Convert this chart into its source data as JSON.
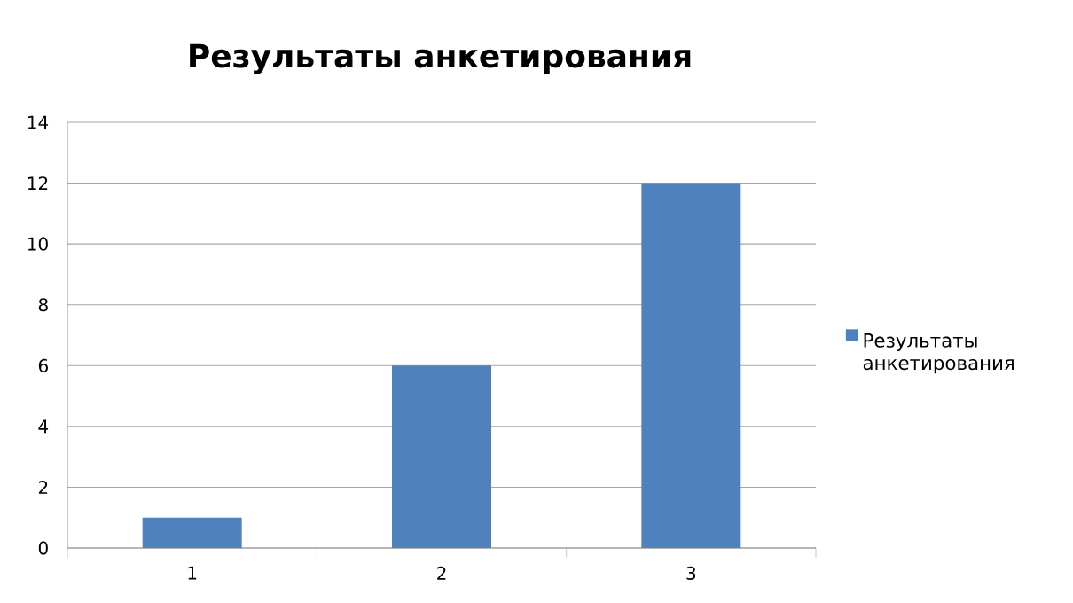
{
  "chart_data": {
    "type": "bar",
    "title": "Результаты анкетирования",
    "categories": [
      "1",
      "2",
      "3"
    ],
    "series": [
      {
        "name": "Результаты анкетирования",
        "color": "#4f81bd",
        "values": [
          1,
          6,
          12
        ]
      }
    ],
    "ylim": [
      0,
      14
    ],
    "yticks": [
      0,
      2,
      4,
      6,
      8,
      10,
      12,
      14
    ],
    "grid": "y",
    "legend": "right"
  }
}
